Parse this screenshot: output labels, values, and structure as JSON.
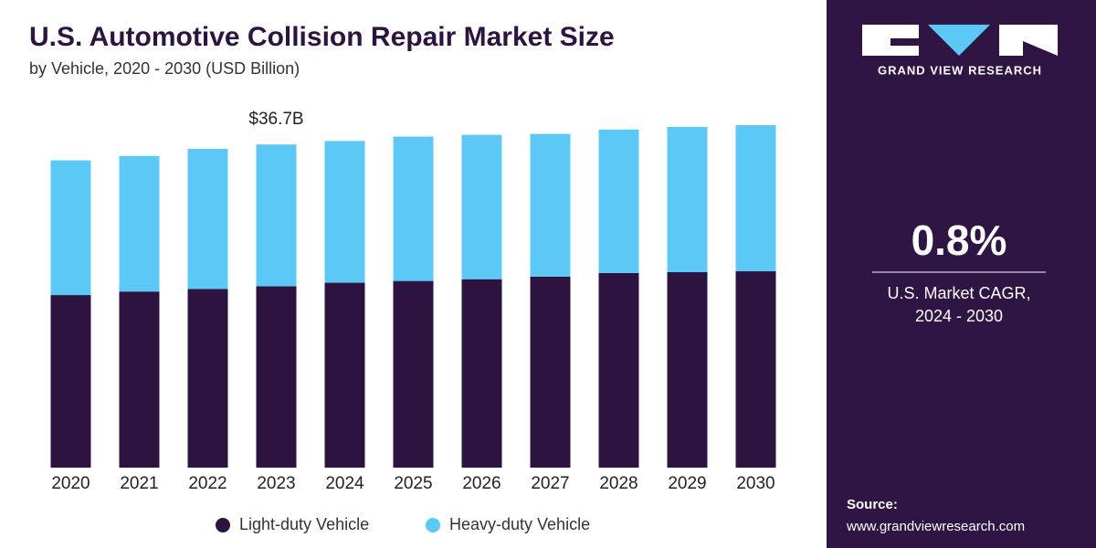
{
  "chart_data": {
    "type": "bar",
    "stacked": true,
    "title": "U.S. Automotive Collision Repair Market Size",
    "subtitle": "by Vehicle, 2020 - 2030 (USD Billion)",
    "categories": [
      "2020",
      "2021",
      "2022",
      "2023",
      "2024",
      "2025",
      "2026",
      "2027",
      "2028",
      "2029",
      "2030"
    ],
    "series": [
      {
        "name": "Light-duty Vehicle",
        "color": "#2d1440",
        "values": [
          19.6,
          20.0,
          20.3,
          20.6,
          21.0,
          21.2,
          21.4,
          21.7,
          22.1,
          22.2,
          22.3
        ]
      },
      {
        "name": "Heavy-duty Vehicle",
        "color": "#5bc8f5",
        "values": [
          15.3,
          15.4,
          15.9,
          16.1,
          16.1,
          16.4,
          16.4,
          16.2,
          16.3,
          16.5,
          16.6
        ]
      }
    ],
    "annotations": [
      {
        "text": "$36.7B",
        "x": "2023",
        "y": 36.7
      }
    ],
    "legend": "bottom"
  },
  "sidebar": {
    "brand": "GRAND VIEW RESEARCH",
    "stat": "0.8%",
    "stat_label": [
      "U.S. Market CAGR,",
      "2024 - 2030"
    ],
    "source_title": "Source:",
    "source_url": "www.grandviewresearch.com"
  }
}
